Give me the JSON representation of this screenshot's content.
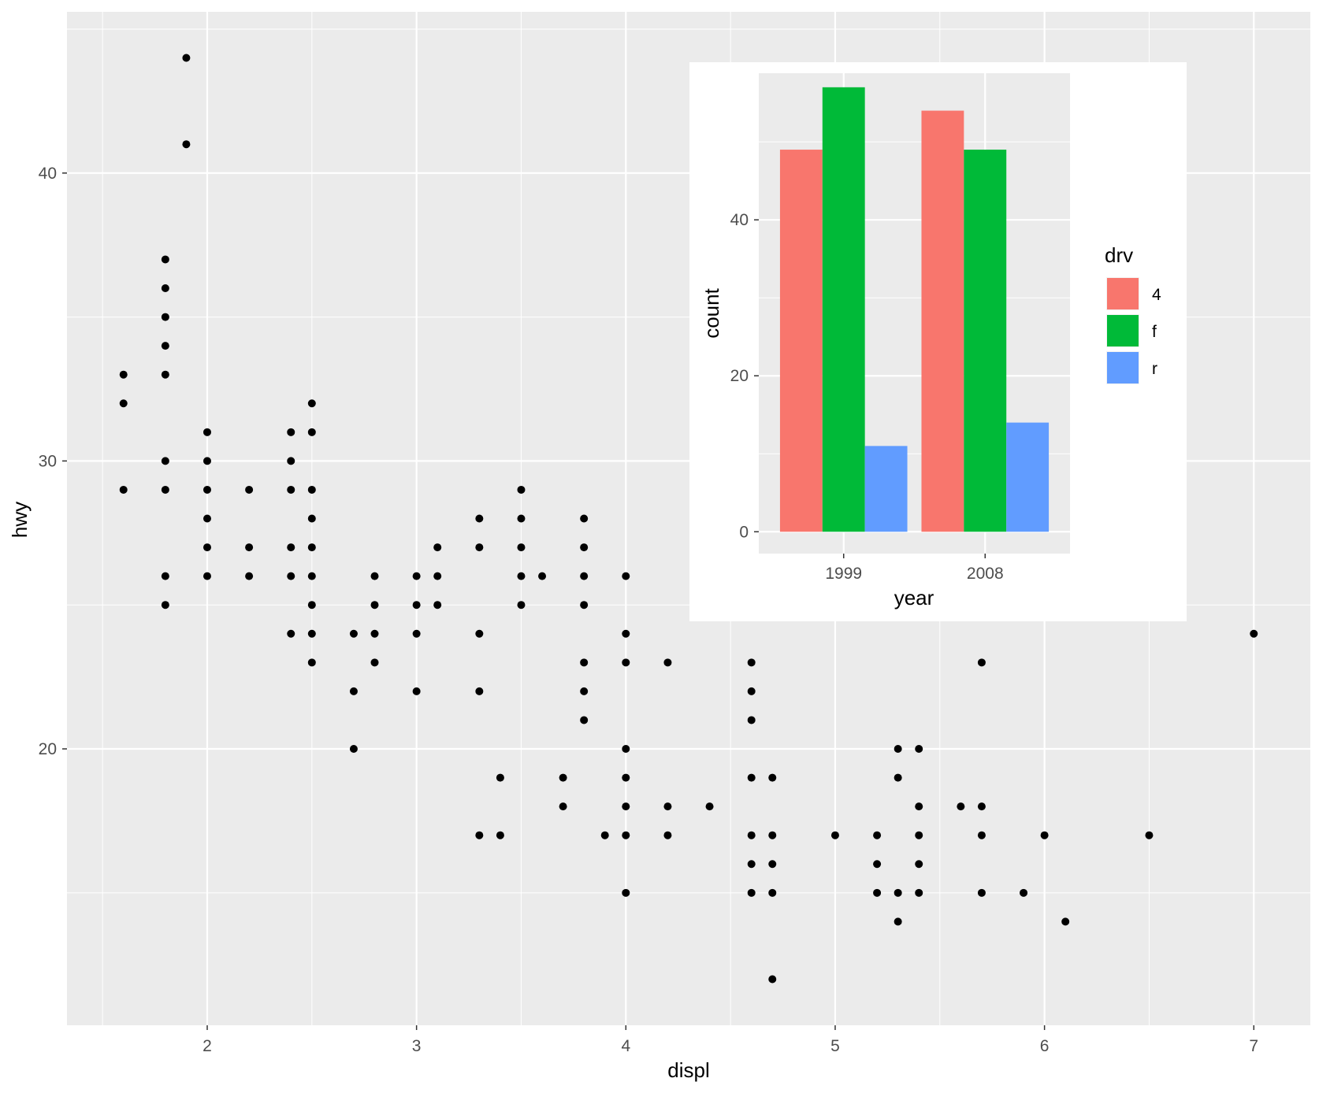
{
  "chart_data": [
    {
      "type": "scatter",
      "xlabel": "displ",
      "ylabel": "hwy",
      "xlim": [
        1.33,
        7.27
      ],
      "ylim": [
        10.4,
        45.6
      ],
      "xticks": [
        "2",
        "3",
        "4",
        "5",
        "6",
        "7"
      ],
      "yticks": [
        "20",
        "30",
        "40"
      ],
      "grid": true,
      "background": "#EBEBEB",
      "point_color": "#000000",
      "points": [
        [
          1.6,
          33
        ],
        [
          1.6,
          32
        ],
        [
          1.6,
          29
        ],
        [
          1.8,
          37
        ],
        [
          1.8,
          36
        ],
        [
          1.8,
          35
        ],
        [
          1.8,
          34
        ],
        [
          1.8,
          33
        ],
        [
          1.8,
          30
        ],
        [
          1.8,
          29
        ],
        [
          1.8,
          26
        ],
        [
          1.8,
          25
        ],
        [
          1.9,
          44
        ],
        [
          1.9,
          41
        ],
        [
          2.0,
          31
        ],
        [
          2.0,
          30
        ],
        [
          2.0,
          29
        ],
        [
          2.0,
          28
        ],
        [
          2.0,
          27
        ],
        [
          2.0,
          26
        ],
        [
          2.2,
          29
        ],
        [
          2.2,
          27
        ],
        [
          2.2,
          26
        ],
        [
          2.4,
          31
        ],
        [
          2.4,
          30
        ],
        [
          2.4,
          29
        ],
        [
          2.4,
          27
        ],
        [
          2.4,
          26
        ],
        [
          2.4,
          24
        ],
        [
          2.5,
          32
        ],
        [
          2.5,
          31
        ],
        [
          2.5,
          29
        ],
        [
          2.5,
          28
        ],
        [
          2.5,
          27
        ],
        [
          2.5,
          26
        ],
        [
          2.5,
          25
        ],
        [
          2.5,
          24
        ],
        [
          2.5,
          23
        ],
        [
          2.7,
          24
        ],
        [
          2.7,
          22
        ],
        [
          2.7,
          20
        ],
        [
          2.8,
          26
        ],
        [
          2.8,
          25
        ],
        [
          2.8,
          24
        ],
        [
          2.8,
          23
        ],
        [
          3.0,
          26
        ],
        [
          3.0,
          25
        ],
        [
          3.0,
          24
        ],
        [
          3.0,
          22
        ],
        [
          3.1,
          27
        ],
        [
          3.1,
          26
        ],
        [
          3.1,
          25
        ],
        [
          3.3,
          28
        ],
        [
          3.3,
          27
        ],
        [
          3.3,
          24
        ],
        [
          3.3,
          22
        ],
        [
          3.3,
          17
        ],
        [
          3.4,
          19
        ],
        [
          3.4,
          17
        ],
        [
          3.5,
          29
        ],
        [
          3.5,
          28
        ],
        [
          3.5,
          27
        ],
        [
          3.5,
          26
        ],
        [
          3.5,
          25
        ],
        [
          3.6,
          26
        ],
        [
          3.7,
          19
        ],
        [
          3.7,
          18
        ],
        [
          3.8,
          28
        ],
        [
          3.8,
          27
        ],
        [
          3.8,
          26
        ],
        [
          3.8,
          25
        ],
        [
          3.8,
          23
        ],
        [
          3.8,
          22
        ],
        [
          3.8,
          21
        ],
        [
          3.9,
          17
        ],
        [
          4.0,
          26
        ],
        [
          4.0,
          24
        ],
        [
          4.0,
          23
        ],
        [
          4.0,
          20
        ],
        [
          4.0,
          19
        ],
        [
          4.0,
          18
        ],
        [
          4.0,
          17
        ],
        [
          4.0,
          15
        ],
        [
          4.2,
          23
        ],
        [
          4.2,
          18
        ],
        [
          4.2,
          17
        ],
        [
          4.4,
          18
        ],
        [
          4.6,
          23
        ],
        [
          4.6,
          22
        ],
        [
          4.6,
          21
        ],
        [
          4.6,
          19
        ],
        [
          4.6,
          17
        ],
        [
          4.6,
          16
        ],
        [
          4.6,
          15
        ],
        [
          4.7,
          19
        ],
        [
          4.7,
          17
        ],
        [
          4.7,
          16
        ],
        [
          4.7,
          15
        ],
        [
          4.7,
          12
        ],
        [
          5.0,
          17
        ],
        [
          5.2,
          17
        ],
        [
          5.2,
          16
        ],
        [
          5.2,
          15
        ],
        [
          5.3,
          20
        ],
        [
          5.3,
          19
        ],
        [
          5.3,
          15
        ],
        [
          5.3,
          14
        ],
        [
          5.4,
          20
        ],
        [
          5.4,
          18
        ],
        [
          5.4,
          17
        ],
        [
          5.4,
          16
        ],
        [
          5.4,
          15
        ],
        [
          5.6,
          18
        ],
        [
          5.7,
          23
        ],
        [
          5.7,
          18
        ],
        [
          5.7,
          17
        ],
        [
          5.7,
          15
        ],
        [
          5.9,
          15
        ],
        [
          6.0,
          17
        ],
        [
          6.1,
          14
        ],
        [
          6.5,
          17
        ],
        [
          7.0,
          24
        ]
      ]
    },
    {
      "type": "bar",
      "title": "",
      "xlabel": "year",
      "ylabel": "count",
      "categories": [
        "1999",
        "2008"
      ],
      "yticks": [
        "0",
        "20",
        "40"
      ],
      "ylim": [
        -2.8,
        58.8
      ],
      "grid": true,
      "background": "#EBEBEB",
      "legend_title": "drv",
      "legend_position": "right",
      "series": [
        {
          "name": "4",
          "color": "#F8766D",
          "values": [
            49,
            54
          ]
        },
        {
          "name": "f",
          "color": "#00BA38",
          "values": [
            57,
            49
          ]
        },
        {
          "name": "r",
          "color": "#619CFF",
          "values": [
            11,
            14
          ]
        }
      ]
    }
  ]
}
